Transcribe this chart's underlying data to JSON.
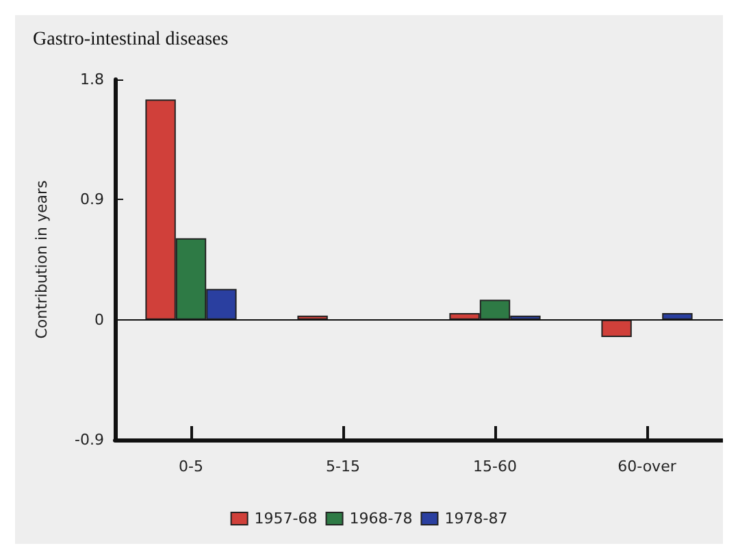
{
  "chart_data": {
    "type": "bar",
    "title": "Gastro-intestinal diseases",
    "ylabel": "Contribution in years",
    "categories": [
      "0-5",
      "5-15",
      "15-60",
      "60-over"
    ],
    "series": [
      {
        "name": "1957-68",
        "color": "#d0403a",
        "values": [
          1.65,
          0.03,
          0.05,
          -0.13
        ]
      },
      {
        "name": "1968-78",
        "color": "#2e7a45",
        "values": [
          0.61,
          null,
          0.15,
          null
        ]
      },
      {
        "name": "1978-87",
        "color": "#2a3fa0",
        "values": [
          0.23,
          null,
          0.03,
          0.05
        ]
      }
    ],
    "ylim": [
      -0.9,
      1.8
    ],
    "yticks": [
      -0.9,
      0,
      0.9,
      1.8
    ],
    "ref_lines": [
      {
        "axis": "y",
        "value": 0
      }
    ],
    "grid": false,
    "legend": "bottom"
  }
}
